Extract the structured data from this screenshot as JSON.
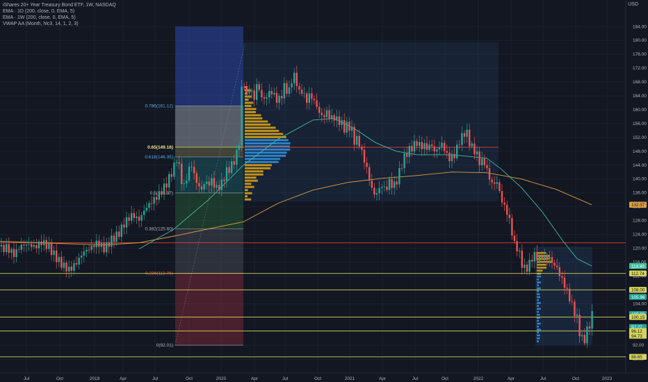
{
  "legend": {
    "title": "iShares 20+ Year Treasury Bond ETF, 1W, NASDAQ",
    "ema1": "EMA · 1D (200, close, 0, EMA, 5)",
    "ema2": "EMA · 1W (200, close, 0, EMA, 5)",
    "vwap": "VWAP AA (Month, hlc3, 14, 1, 2, 3)"
  },
  "currency": "USD",
  "colors": {
    "background": "#131722",
    "up": "#26a69a",
    "down": "#ef5350",
    "ema1d": "#e0a040",
    "ema1w": "#3fbf9f",
    "fib_line": "#d6d45a",
    "red_line": "#e0403c",
    "volume_profile": "#d4a017",
    "volume_profile_blue": "#2f8fdc"
  },
  "chart_data": {
    "type": "candlestick",
    "timeframe": "1W",
    "ylim": [
      84,
      184
    ],
    "yticks": [
      88,
      92,
      96,
      100,
      104,
      108,
      112,
      116,
      120,
      124,
      128,
      132,
      136,
      140,
      144,
      148,
      152,
      156,
      160,
      164,
      168,
      172,
      176,
      180,
      184
    ],
    "x_tick_labels": [
      "Jul",
      "Oct",
      "2019",
      "Apr",
      "Jul",
      "Oct",
      "2020",
      "Apr",
      "Jul",
      "Oct",
      "2021",
      "Apr",
      "Jul",
      "Oct",
      "2022",
      "Apr",
      "Jul",
      "Oct",
      "2023"
    ],
    "fib_levels": [
      {
        "label": "0.786(161.12)",
        "value": 161.12
      },
      {
        "label": "0.65(149.16)",
        "value": 149.16
      },
      {
        "label": "0.618(146.35)",
        "value": 146.35
      },
      {
        "label": "0.5(135.97)",
        "value": 135.97
      },
      {
        "label": "0.382(125.60)",
        "value": 125.6
      },
      {
        "label": "0.236(112.76)",
        "value": 112.76
      },
      {
        "label": "0(92.01)",
        "value": 92.01
      }
    ],
    "horizontal_lines": [
      {
        "value": 149.16,
        "color": "red"
      },
      {
        "value": 121.6,
        "color": "red"
      },
      {
        "value": 112.74,
        "color": "yellow"
      },
      {
        "value": 108.0,
        "color": "yellow"
      },
      {
        "value": 100.15,
        "color": "yellow"
      },
      {
        "value": 96.12,
        "color": "yellow"
      },
      {
        "value": 88.65,
        "color": "yellow"
      }
    ],
    "price_labels": [
      {
        "text": "132.57",
        "value": 132.57,
        "color": "#e0a040"
      },
      {
        "text": "114.90",
        "value": 114.9,
        "color": "#3fbf9f"
      },
      {
        "text": "112.74",
        "value": 112.74,
        "color": "#d6d45a"
      },
      {
        "text": "108.00",
        "value": 108.0,
        "color": "#d6d45a"
      },
      {
        "text": "105.96",
        "value": 105.96,
        "color": "#26a69a"
      },
      {
        "text": "100.99",
        "value": 100.99,
        "color": "#26a69a"
      },
      {
        "text": "100.15",
        "value": 100.15,
        "color": "#d6d45a"
      },
      {
        "text": "97.27",
        "value": 97.27,
        "color": "#26a69a"
      },
      {
        "text": "96.12",
        "value": 96.12,
        "color": "#d6d45a"
      },
      {
        "text": "94.73",
        "value": 94.73,
        "color": "#d6d45a"
      },
      {
        "text": "88.65",
        "value": 88.65,
        "color": "#d6d45a"
      }
    ],
    "close_path": [
      [
        0,
        120.5
      ],
      [
        10,
        121.0
      ],
      [
        20,
        119.0
      ],
      [
        30,
        121.5
      ],
      [
        40,
        122.0
      ],
      [
        50,
        121.0
      ],
      [
        60,
        122.5
      ],
      [
        70,
        121.0
      ],
      [
        80,
        118.0
      ],
      [
        90,
        115.5
      ],
      [
        100,
        114.0
      ],
      [
        110,
        116.0
      ],
      [
        120,
        119.0
      ],
      [
        130,
        120.0
      ],
      [
        140,
        121.5
      ],
      [
        150,
        119.5
      ],
      [
        160,
        122.0
      ],
      [
        170,
        123.5
      ],
      [
        180,
        127.0
      ],
      [
        190,
        129.0
      ],
      [
        200,
        127.5
      ],
      [
        210,
        131.0
      ],
      [
        220,
        133.0
      ],
      [
        230,
        135.0
      ],
      [
        240,
        138.0
      ],
      [
        250,
        142.5
      ],
      [
        255,
        146.0
      ],
      [
        260,
        139.5
      ],
      [
        265,
        137.0
      ],
      [
        270,
        141.0
      ],
      [
        275,
        144.0
      ],
      [
        280,
        140.0
      ],
      [
        285,
        137.5
      ],
      [
        290,
        136.5
      ],
      [
        295,
        139.0
      ],
      [
        300,
        138.0
      ],
      [
        305,
        139.5
      ],
      [
        310,
        137.0
      ],
      [
        315,
        137.5
      ],
      [
        320,
        139.0
      ],
      [
        325,
        142.0
      ],
      [
        330,
        143.0
      ],
      [
        335,
        144.5
      ],
      [
        340,
        147.0
      ],
      [
        345,
        152.0
      ],
      [
        348,
        168.0
      ],
      [
        350,
        178.5
      ],
      [
        352,
        160.5
      ],
      [
        355,
        164.5
      ],
      [
        360,
        167.0
      ],
      [
        365,
        163.0
      ],
      [
        370,
        168.5
      ],
      [
        375,
        164.5
      ],
      [
        380,
        163.5
      ],
      [
        385,
        165.0
      ],
      [
        390,
        166.0
      ],
      [
        395,
        164.5
      ],
      [
        400,
        163.0
      ],
      [
        405,
        165.0
      ],
      [
        410,
        168.0
      ],
      [
        415,
        165.0
      ],
      [
        420,
        170.0
      ],
      [
        425,
        170.5
      ],
      [
        430,
        165.5
      ],
      [
        435,
        166.5
      ],
      [
        440,
        163.0
      ],
      [
        445,
        165.0
      ],
      [
        450,
        164.0
      ],
      [
        455,
        162.0
      ],
      [
        460,
        159.5
      ],
      [
        465,
        158.5
      ],
      [
        470,
        160.0
      ],
      [
        475,
        158.0
      ],
      [
        480,
        158.5
      ],
      [
        485,
        157.5
      ],
      [
        490,
        157.0
      ],
      [
        495,
        155.0
      ],
      [
        500,
        156.0
      ],
      [
        505,
        155.0
      ],
      [
        510,
        151.0
      ],
      [
        515,
        152.0
      ],
      [
        520,
        148.0
      ],
      [
        525,
        145.0
      ],
      [
        530,
        141.0
      ],
      [
        535,
        137.0
      ],
      [
        540,
        135.0
      ],
      [
        545,
        137.0
      ],
      [
        550,
        138.0
      ],
      [
        555,
        136.5
      ],
      [
        560,
        139.0
      ],
      [
        565,
        137.5
      ],
      [
        570,
        138.5
      ],
      [
        575,
        142.0
      ],
      [
        580,
        145.0
      ],
      [
        585,
        147.0
      ],
      [
        590,
        148.0
      ],
      [
        595,
        149.0
      ],
      [
        600,
        150.0
      ],
      [
        605,
        148.5
      ],
      [
        610,
        149.0
      ],
      [
        615,
        148.0
      ],
      [
        620,
        149.5
      ],
      [
        625,
        147.0
      ],
      [
        630,
        148.0
      ],
      [
        635,
        149.5
      ],
      [
        640,
        147.5
      ],
      [
        645,
        145.0
      ],
      [
        650,
        145.5
      ],
      [
        655,
        146.5
      ],
      [
        660,
        150.0
      ],
      [
        665,
        151.5
      ],
      [
        670,
        153.5
      ],
      [
        675,
        150.0
      ],
      [
        680,
        148.0
      ],
      [
        685,
        147.0
      ],
      [
        690,
        144.0
      ],
      [
        695,
        145.0
      ],
      [
        700,
        142.5
      ],
      [
        705,
        139.0
      ],
      [
        710,
        138.0
      ],
      [
        715,
        139.0
      ],
      [
        720,
        134.5
      ],
      [
        725,
        132.0
      ],
      [
        730,
        130.0
      ],
      [
        735,
        126.0
      ],
      [
        740,
        121.0
      ],
      [
        745,
        120.0
      ],
      [
        750,
        116.0
      ],
      [
        755,
        114.0
      ],
      [
        760,
        115.0
      ],
      [
        765,
        117.5
      ],
      [
        770,
        118.5
      ],
      [
        775,
        117.0
      ],
      [
        780,
        118.5
      ],
      [
        785,
        117.5
      ],
      [
        790,
        118.0
      ],
      [
        795,
        116.0
      ],
      [
        800,
        115.5
      ],
      [
        805,
        113.0
      ],
      [
        810,
        111.0
      ],
      [
        815,
        108.5
      ],
      [
        820,
        106.0
      ],
      [
        825,
        103.0
      ],
      [
        830,
        100.5
      ],
      [
        835,
        95.0
      ],
      [
        840,
        94.0
      ],
      [
        845,
        97.5
      ],
      [
        850,
        99.5
      ],
      [
        853,
        103.5
      ]
    ],
    "ema1d_path": [
      [
        0,
        122.0
      ],
      [
        100,
        121.3
      ],
      [
        150,
        121.0
      ],
      [
        200,
        121.6
      ],
      [
        250,
        123.5
      ],
      [
        300,
        125.6
      ],
      [
        350,
        127.6
      ],
      [
        400,
        133.0
      ],
      [
        450,
        136.8
      ],
      [
        500,
        139.0
      ],
      [
        550,
        140.2
      ],
      [
        600,
        141.0
      ],
      [
        650,
        142.0
      ],
      [
        700,
        141.8
      ],
      [
        750,
        140.0
      ],
      [
        800,
        137.0
      ],
      [
        851,
        132.57
      ]
    ],
    "ema1w_path": [
      [
        200,
        119.8
      ],
      [
        250,
        125.5
      ],
      [
        300,
        134.0
      ],
      [
        350,
        144.0
      ],
      [
        400,
        151.5
      ],
      [
        450,
        157.0
      ],
      [
        480,
        157.5
      ],
      [
        510,
        154.5
      ],
      [
        540,
        150.5
      ],
      [
        570,
        148.0
      ],
      [
        600,
        147.0
      ],
      [
        650,
        147.0
      ],
      [
        700,
        146.0
      ],
      [
        720,
        143.0
      ],
      [
        750,
        137.5
      ],
      [
        780,
        130.5
      ],
      [
        810,
        122.0
      ],
      [
        830,
        117.0
      ],
      [
        851,
        114.9
      ]
    ]
  }
}
